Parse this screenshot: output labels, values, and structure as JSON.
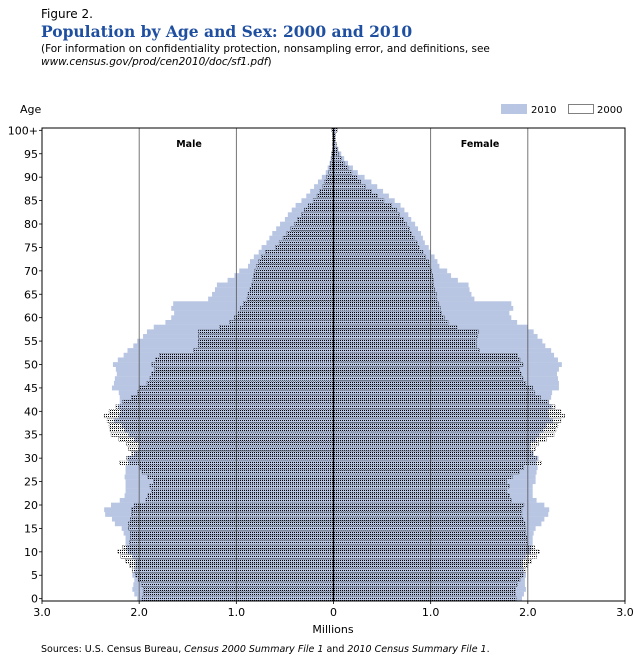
{
  "header": {
    "figure_label": "Figure 2.",
    "title": "Population by Age and Sex: 2000 and 2010",
    "note_prefix": "(For information on confidentiality protection, nonsampling error, and definitions, see ",
    "note_url": "www.census.gov/prod/cen2010/doc/sf1.pdf",
    "note_suffix": ")"
  },
  "footer": {
    "source_prefix": "Sources: U.S. Census Bureau, ",
    "source_1": "Census 2000 Summary File 1",
    "source_mid": " and ",
    "source_2": "2010 Census Summary File 1",
    "source_end": "."
  },
  "chart_data": {
    "type": "bar",
    "subtype": "population-pyramid",
    "ylabel": "Age",
    "xlabel": "Millions",
    "xlim": [
      -3.0,
      3.0
    ],
    "x_ticks": [
      "3.0",
      "2.0",
      "1.0",
      "0",
      "1.0",
      "2.0",
      "3.0"
    ],
    "y_ticks": [
      "100+",
      "95",
      "90",
      "85",
      "80",
      "75",
      "70",
      "65",
      "60",
      "55",
      "50",
      "45",
      "40",
      "35",
      "30",
      "25",
      "20",
      "15",
      "10",
      "5",
      "0"
    ],
    "panel_labels": {
      "left": "Male",
      "right": "Female"
    },
    "legend": [
      {
        "label": "2010",
        "color": "#b8c6e3",
        "style": "fill"
      },
      {
        "label": "2000",
        "color": "#000000",
        "style": "dotted-outline"
      }
    ],
    "legend_placement": "top-right",
    "grid": "vertical",
    "ages": [
      0,
      1,
      2,
      3,
      4,
      5,
      6,
      7,
      8,
      9,
      10,
      11,
      12,
      13,
      14,
      15,
      16,
      17,
      18,
      19,
      20,
      21,
      22,
      23,
      24,
      25,
      26,
      27,
      28,
      29,
      30,
      31,
      32,
      33,
      34,
      35,
      36,
      37,
      38,
      39,
      40,
      41,
      42,
      43,
      44,
      45,
      46,
      47,
      48,
      49,
      50,
      51,
      52,
      53,
      54,
      55,
      56,
      57,
      58,
      59,
      60,
      61,
      62,
      63,
      64,
      65,
      66,
      67,
      68,
      69,
      70,
      71,
      72,
      73,
      74,
      75,
      76,
      77,
      78,
      79,
      80,
      81,
      82,
      83,
      84,
      85,
      86,
      87,
      88,
      89,
      90,
      91,
      92,
      93,
      94,
      95,
      96,
      97,
      98,
      99,
      100
    ],
    "series": [
      {
        "name": "2010",
        "sex": "Male",
        "values": [
          2.02,
          2.05,
          2.07,
          2.06,
          2.05,
          2.07,
          2.05,
          2.04,
          2.04,
          2.07,
          2.12,
          2.13,
          2.14,
          2.14,
          2.16,
          2.18,
          2.25,
          2.28,
          2.35,
          2.36,
          2.29,
          2.2,
          2.15,
          2.14,
          2.14,
          2.14,
          2.15,
          2.14,
          2.14,
          2.11,
          2.12,
          2.05,
          2.01,
          2.0,
          2.05,
          2.11,
          2.15,
          2.18,
          2.26,
          2.21,
          2.19,
          2.22,
          2.2,
          2.2,
          2.21,
          2.28,
          2.26,
          2.25,
          2.23,
          2.24,
          2.27,
          2.22,
          2.16,
          2.12,
          2.06,
          2.02,
          1.96,
          1.92,
          1.85,
          1.73,
          1.67,
          1.64,
          1.67,
          1.65,
          1.29,
          1.25,
          1.22,
          1.2,
          1.09,
          1.02,
          0.97,
          0.88,
          0.86,
          0.82,
          0.77,
          0.74,
          0.69,
          0.66,
          0.63,
          0.59,
          0.55,
          0.5,
          0.47,
          0.43,
          0.39,
          0.33,
          0.28,
          0.24,
          0.2,
          0.16,
          0.12,
          0.08,
          0.06,
          0.04,
          0.03,
          0.02,
          0.01,
          0.01,
          0.01,
          0.01,
          0.01
        ]
      },
      {
        "name": "2010",
        "sex": "Female",
        "values": [
          1.94,
          1.96,
          1.98,
          1.97,
          1.97,
          1.98,
          1.96,
          1.95,
          1.95,
          1.98,
          2.03,
          2.04,
          2.05,
          2.05,
          2.06,
          2.08,
          2.14,
          2.17,
          2.21,
          2.22,
          2.17,
          2.09,
          2.05,
          2.05,
          2.05,
          2.08,
          2.08,
          2.09,
          2.1,
          2.09,
          2.11,
          2.06,
          2.03,
          2.03,
          2.08,
          2.12,
          2.16,
          2.19,
          2.26,
          2.22,
          2.21,
          2.25,
          2.22,
          2.24,
          2.25,
          2.32,
          2.32,
          2.31,
          2.3,
          2.32,
          2.35,
          2.31,
          2.27,
          2.24,
          2.18,
          2.15,
          2.1,
          2.06,
          2.0,
          1.89,
          1.83,
          1.81,
          1.85,
          1.83,
          1.45,
          1.42,
          1.4,
          1.39,
          1.28,
          1.21,
          1.17,
          1.09,
          1.07,
          1.04,
          1.0,
          0.98,
          0.94,
          0.92,
          0.9,
          0.87,
          0.84,
          0.8,
          0.77,
          0.73,
          0.69,
          0.63,
          0.57,
          0.51,
          0.45,
          0.39,
          0.32,
          0.25,
          0.2,
          0.15,
          0.11,
          0.08,
          0.05,
          0.03,
          0.02,
          0.02,
          0.03
        ]
      },
      {
        "name": "2000",
        "sex": "Male",
        "values": [
          1.97,
          1.96,
          1.96,
          1.98,
          2.01,
          2.04,
          2.07,
          2.1,
          2.14,
          2.19,
          2.22,
          2.17,
          2.1,
          2.09,
          2.09,
          2.11,
          2.11,
          2.09,
          2.08,
          2.08,
          2.05,
          1.93,
          1.91,
          1.87,
          1.89,
          1.85,
          1.91,
          1.97,
          2.0,
          2.2,
          2.13,
          2.08,
          2.11,
          2.13,
          2.21,
          2.29,
          2.3,
          2.31,
          2.33,
          2.36,
          2.31,
          2.24,
          2.17,
          2.08,
          2.02,
          2.0,
          1.92,
          1.89,
          1.87,
          1.84,
          1.87,
          1.83,
          1.79,
          1.44,
          1.39,
          1.39,
          1.39,
          1.39,
          1.17,
          1.07,
          1.02,
          0.98,
          0.96,
          0.93,
          0.89,
          0.88,
          0.86,
          0.84,
          0.83,
          0.82,
          0.81,
          0.79,
          0.77,
          0.74,
          0.7,
          0.6,
          0.56,
          0.52,
          0.48,
          0.44,
          0.4,
          0.37,
          0.33,
          0.3,
          0.26,
          0.21,
          0.17,
          0.14,
          0.11,
          0.09,
          0.07,
          0.05,
          0.04,
          0.03,
          0.02,
          0.02,
          0.01,
          0.01,
          0.01,
          0.01,
          0.02
        ]
      },
      {
        "name": "2000",
        "sex": "Female",
        "values": [
          1.88,
          1.87,
          1.87,
          1.89,
          1.92,
          1.95,
          1.98,
          2.0,
          2.04,
          2.09,
          2.12,
          2.07,
          2.0,
          1.99,
          1.98,
          1.98,
          1.97,
          1.95,
          1.94,
          1.94,
          1.96,
          1.83,
          1.81,
          1.78,
          1.81,
          1.78,
          1.84,
          1.91,
          1.96,
          2.14,
          2.09,
          2.05,
          2.08,
          2.11,
          2.19,
          2.27,
          2.29,
          2.31,
          2.34,
          2.38,
          2.34,
          2.28,
          2.21,
          2.13,
          2.07,
          2.05,
          1.98,
          1.95,
          1.93,
          1.91,
          1.95,
          1.92,
          1.89,
          1.5,
          1.47,
          1.47,
          1.48,
          1.49,
          1.27,
          1.18,
          1.14,
          1.11,
          1.1,
          1.08,
          1.06,
          1.06,
          1.04,
          1.03,
          1.03,
          1.02,
          1.01,
          0.99,
          0.98,
          0.95,
          0.92,
          0.88,
          0.86,
          0.83,
          0.8,
          0.78,
          0.75,
          0.72,
          0.68,
          0.65,
          0.6,
          0.52,
          0.45,
          0.39,
          0.33,
          0.28,
          0.24,
          0.19,
          0.15,
          0.11,
          0.08,
          0.05,
          0.04,
          0.03,
          0.02,
          0.02,
          0.04
        ]
      }
    ]
  }
}
